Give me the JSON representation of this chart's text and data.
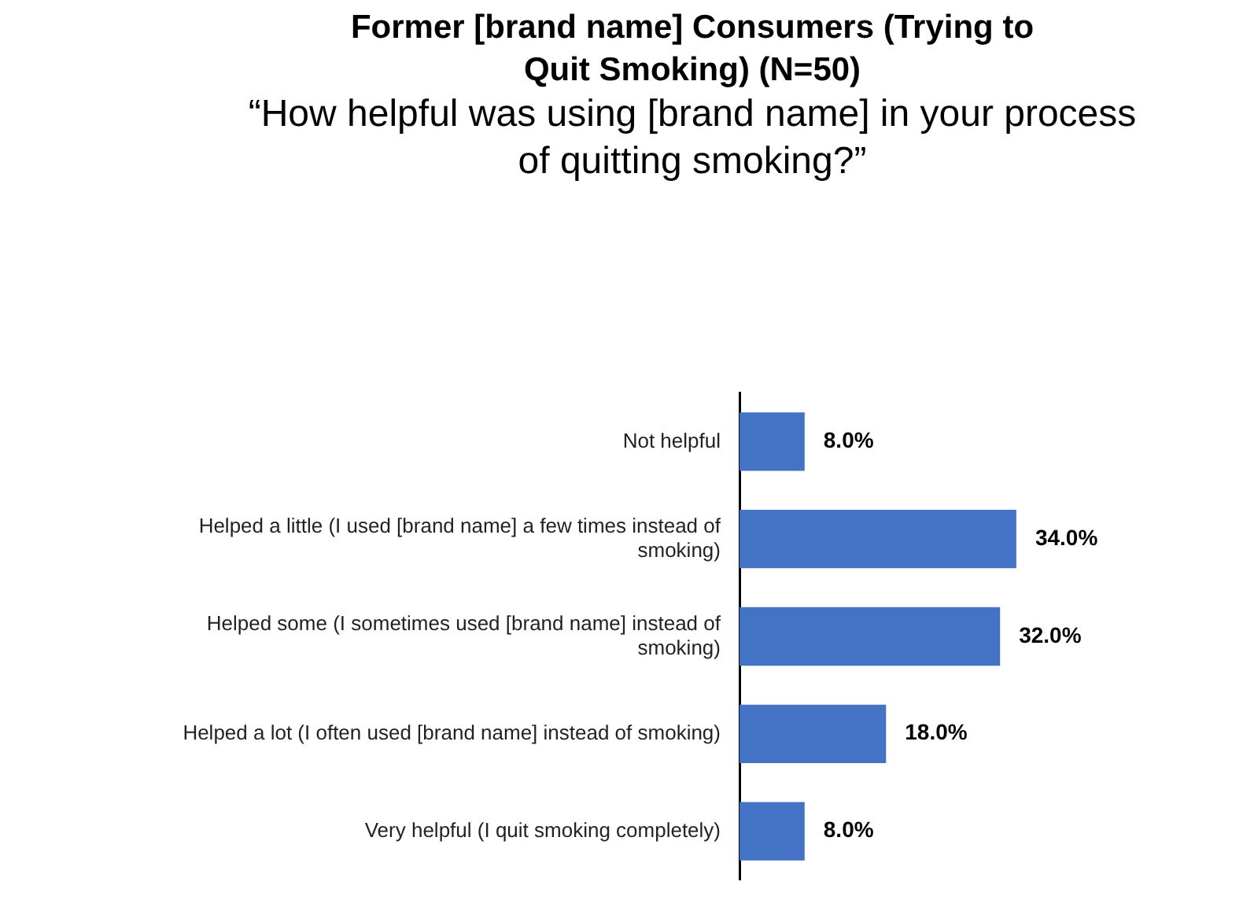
{
  "chart_data": {
    "type": "bar",
    "orientation": "horizontal",
    "title": "Former [brand name] Consumers (Trying to Quit Smoking) (N=50)",
    "subtitle": "“How helpful was using [brand name] in your process of quitting smoking?”",
    "categories": [
      "Not helpful",
      "Helped a little (I used [brand name] a few times instead of smoking)",
      "Helped some (I sometimes used [brand name] instead of smoking)",
      "Helped a lot (I often used [brand name] instead of smoking)",
      "Very helpful (I quit smoking completely)"
    ],
    "values": [
      8.0,
      34.0,
      32.0,
      18.0,
      8.0
    ],
    "color": "#4472c4",
    "data_labels": true,
    "value_labels": [
      "8.0%",
      "34.0%",
      "32.0%",
      "18.0%",
      "8.0%"
    ],
    "grid": false,
    "legend": false
  }
}
